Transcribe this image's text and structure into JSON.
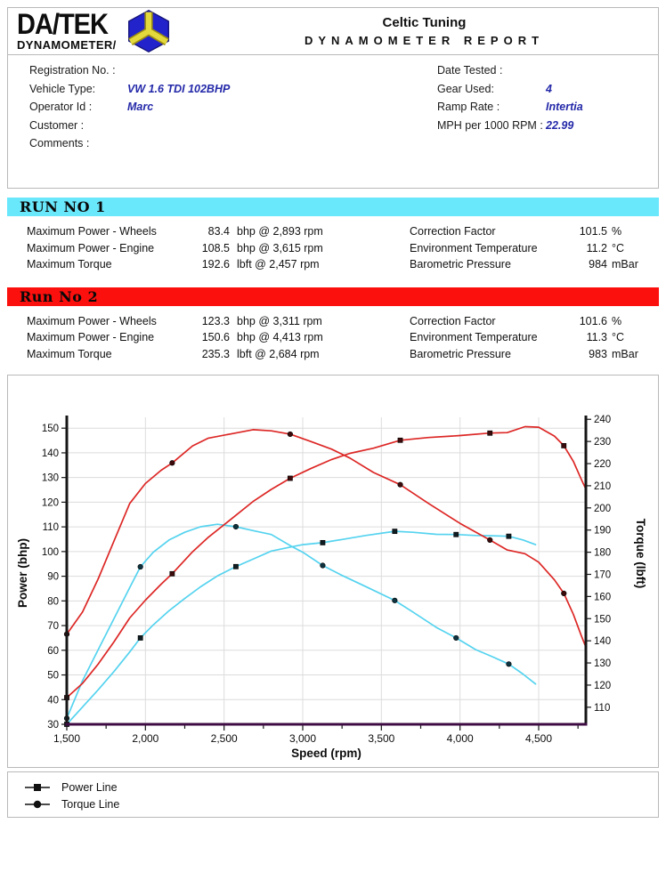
{
  "header": {
    "brand_line1": "DA/TEK",
    "brand_line2": "DYNAMOMETER/",
    "title": "Celtic Tuning",
    "subtitle": "DYNAMOMETER REPORT"
  },
  "info": {
    "left": [
      {
        "label": "Registration No. :",
        "value": ""
      },
      {
        "label": "Vehicle Type:",
        "value": "VW 1.6 TDI 102BHP"
      },
      {
        "label": "Operator Id :",
        "value": "Marc"
      },
      {
        "label": "Customer :",
        "value": ""
      },
      {
        "label": "Comments :",
        "value": ""
      }
    ],
    "right": [
      {
        "label": "Date Tested :",
        "value": ""
      },
      {
        "label": "Gear Used:",
        "value": "4"
      },
      {
        "label": "Ramp Rate :",
        "value": "Intertia"
      },
      {
        "label": "MPH per 1000 RPM :",
        "value": "22.99"
      }
    ]
  },
  "runs": [
    {
      "title": "RUN NO 1",
      "bar_color": "#69e7fb",
      "rows_left": [
        {
          "label": "Maximum Power - Wheels",
          "value": "83.4",
          "unit": "bhp @ 2,893 rpm"
        },
        {
          "label": "Maximum Power - Engine",
          "value": "108.5",
          "unit": "bhp @ 3,615 rpm"
        },
        {
          "label": "Maximum Torque",
          "value": "192.6",
          "unit": "lbft @ 2,457 rpm"
        }
      ],
      "rows_right": [
        {
          "label": "Correction Factor",
          "value": "101.5",
          "unit": "%"
        },
        {
          "label": "Environment Temperature",
          "value": "11.2",
          "unit": "°C"
        },
        {
          "label": "Barometric Pressure",
          "value": "984",
          "unit": "mBar"
        }
      ]
    },
    {
      "title": "Run No 2",
      "bar_color": "#fb100d",
      "rows_left": [
        {
          "label": "Maximum Power - Wheels",
          "value": "123.3",
          "unit": "bhp @ 3,311 rpm"
        },
        {
          "label": "Maximum Power - Engine",
          "value": "150.6",
          "unit": "bhp @ 4,413 rpm"
        },
        {
          "label": "Maximum Torque",
          "value": "235.3",
          "unit": "lbft @ 2,684 rpm"
        }
      ],
      "rows_right": [
        {
          "label": "Correction Factor",
          "value": "101.6",
          "unit": "%"
        },
        {
          "label": "Environment Temperature",
          "value": "11.3",
          "unit": "°C"
        },
        {
          "label": "Barometric Pressure",
          "value": "983",
          "unit": "mBar"
        }
      ]
    }
  ],
  "chart_data": {
    "type": "line",
    "xlabel": "Speed (rpm)",
    "ylabel_left": "Power (bhp)",
    "ylabel_right": "Torque (lbft)",
    "x_range": [
      1500,
      4800
    ],
    "x_ticks": [
      1500,
      2000,
      2500,
      3000,
      3500,
      4000,
      4500
    ],
    "x_tick_labels": [
      "1,500",
      "2,000",
      "2,500",
      "3,000",
      "3,500",
      "4,000",
      "4,500"
    ],
    "x_minor_ticks": [
      1750,
      2250,
      2750,
      3250,
      3750,
      4250,
      4750
    ],
    "power_range": [
      30,
      154.4
    ],
    "power_ticks": [
      30,
      40,
      50,
      60,
      70,
      80,
      90,
      100,
      110,
      120,
      130,
      140,
      150
    ],
    "torque_range": [
      102.3,
      240.9
    ],
    "torque_ticks": [
      110,
      120,
      130,
      140,
      150,
      160,
      170,
      180,
      190,
      200,
      210,
      220,
      230,
      240
    ],
    "grid": true,
    "series": [
      {
        "name": "Run 1 Torque Line",
        "run": 1,
        "axis": "torque",
        "color": "#55d3ef",
        "marker": "circle",
        "marker_color": "#0d3340",
        "points": [
          [
            1500,
            105
          ],
          [
            1600,
            122
          ],
          [
            1700,
            136
          ],
          [
            1800,
            150
          ],
          [
            1900,
            164
          ],
          [
            1968,
            173.4
          ],
          [
            2050,
            180
          ],
          [
            2150,
            185.5
          ],
          [
            2250,
            189
          ],
          [
            2350,
            191.5
          ],
          [
            2457,
            192.6
          ],
          [
            2575,
            191.5
          ],
          [
            2700,
            189.5
          ],
          [
            2800,
            188
          ],
          [
            2930,
            182.6
          ],
          [
            3000,
            180
          ],
          [
            3127,
            174
          ],
          [
            3250,
            169.5
          ],
          [
            3400,
            164.5
          ],
          [
            3585,
            158.2
          ],
          [
            3700,
            153
          ],
          [
            3850,
            146
          ],
          [
            3975,
            141.3
          ],
          [
            4100,
            136
          ],
          [
            4200,
            133
          ],
          [
            4310,
            129.5
          ],
          [
            4400,
            125
          ],
          [
            4480,
            120.5
          ]
        ],
        "markers": [
          [
            1500,
            105
          ],
          [
            1968,
            173.4
          ],
          [
            2575,
            191.5
          ],
          [
            3127,
            174
          ],
          [
            3585,
            158.2
          ],
          [
            3975,
            141.3
          ],
          [
            4310,
            129.5
          ]
        ]
      },
      {
        "name": "Run 1 Power Line",
        "run": 1,
        "axis": "power",
        "color": "#55d3ef",
        "marker": "square",
        "marker_color": "#101d22",
        "points": [
          [
            1500,
            30
          ],
          [
            1600,
            37
          ],
          [
            1700,
            44
          ],
          [
            1800,
            51.4
          ],
          [
            1900,
            59.3
          ],
          [
            1968,
            65
          ],
          [
            2050,
            70.3
          ],
          [
            2150,
            76
          ],
          [
            2250,
            81
          ],
          [
            2350,
            85.7
          ],
          [
            2457,
            90.1
          ],
          [
            2575,
            93.9
          ],
          [
            2700,
            97.4
          ],
          [
            2800,
            100.2
          ],
          [
            2930,
            101.9
          ],
          [
            3000,
            102.8
          ],
          [
            3127,
            103.6
          ],
          [
            3250,
            104.9
          ],
          [
            3400,
            106.5
          ],
          [
            3585,
            108.2
          ],
          [
            3700,
            107.8
          ],
          [
            3850,
            107
          ],
          [
            3975,
            106.9
          ],
          [
            4100,
            106.5
          ],
          [
            4200,
            106.4
          ],
          [
            4310,
            106.2
          ],
          [
            4400,
            104.7
          ],
          [
            4480,
            102.8
          ]
        ],
        "markers": [
          [
            1500,
            30
          ],
          [
            1968,
            65
          ],
          [
            2575,
            93.9
          ],
          [
            3127,
            103.6
          ],
          [
            3585,
            108.2
          ],
          [
            3975,
            106.9
          ],
          [
            4310,
            106.2
          ]
        ]
      },
      {
        "name": "Run 2 Torque Line",
        "run": 2,
        "axis": "torque",
        "color": "#dc2725",
        "marker": "circle",
        "marker_color": "#3c0a0a",
        "points": [
          [
            1500,
            143
          ],
          [
            1600,
            153
          ],
          [
            1700,
            168
          ],
          [
            1800,
            185
          ],
          [
            1900,
            202
          ],
          [
            2000,
            211
          ],
          [
            2100,
            217
          ],
          [
            2170,
            220.3
          ],
          [
            2300,
            228
          ],
          [
            2400,
            231.5
          ],
          [
            2550,
            233.5
          ],
          [
            2684,
            235.3
          ],
          [
            2800,
            234.8
          ],
          [
            2920,
            233.3
          ],
          [
            3050,
            230
          ],
          [
            3184,
            226.5
          ],
          [
            3300,
            222.5
          ],
          [
            3450,
            216
          ],
          [
            3620,
            210.5
          ],
          [
            3800,
            202
          ],
          [
            4000,
            193
          ],
          [
            4190,
            185.5
          ],
          [
            4300,
            181
          ],
          [
            4413,
            179.3
          ],
          [
            4500,
            175.5
          ],
          [
            4600,
            167.5
          ],
          [
            4660,
            161.4
          ],
          [
            4720,
            152
          ],
          [
            4770,
            142.5
          ],
          [
            4795,
            138
          ]
        ],
        "markers": [
          [
            1500,
            143
          ],
          [
            2170,
            220.3
          ],
          [
            2920,
            233.3
          ],
          [
            3620,
            210.5
          ],
          [
            4190,
            185.5
          ],
          [
            4660,
            161.4
          ]
        ]
      },
      {
        "name": "Run 2 Power Line",
        "run": 2,
        "axis": "power",
        "color": "#dc2725",
        "marker": "square",
        "marker_color": "#3c0a0a",
        "points": [
          [
            1500,
            40.8
          ],
          [
            1600,
            46.6
          ],
          [
            1700,
            54.4
          ],
          [
            1800,
            63.4
          ],
          [
            1900,
            73.1
          ],
          [
            2000,
            80.3
          ],
          [
            2100,
            86.8
          ],
          [
            2170,
            91
          ],
          [
            2300,
            99.9
          ],
          [
            2400,
            105.8
          ],
          [
            2550,
            113.4
          ],
          [
            2684,
            120.3
          ],
          [
            2800,
            125.2
          ],
          [
            2920,
            129.7
          ],
          [
            3050,
            133.6
          ],
          [
            3184,
            137.3
          ],
          [
            3300,
            139.8
          ],
          [
            3450,
            141.9
          ],
          [
            3620,
            145.1
          ],
          [
            3800,
            146.2
          ],
          [
            4000,
            147
          ],
          [
            4190,
            148
          ],
          [
            4300,
            148.2
          ],
          [
            4413,
            150.6
          ],
          [
            4500,
            150.4
          ],
          [
            4600,
            146.8
          ],
          [
            4660,
            142.9
          ],
          [
            4720,
            136.6
          ],
          [
            4770,
            129.4
          ],
          [
            4795,
            126
          ]
        ],
        "markers": [
          [
            1500,
            40.8
          ],
          [
            2170,
            91
          ],
          [
            2920,
            129.7
          ],
          [
            3620,
            145.1
          ],
          [
            4190,
            148
          ],
          [
            4660,
            142.9
          ]
        ]
      }
    ]
  },
  "legend": [
    {
      "label": "Power Line",
      "marker": "square"
    },
    {
      "label": "Torque Line",
      "marker": "circle"
    }
  ],
  "colors": {
    "run1_accent": "#69e7fb",
    "run2_accent": "#fb100d",
    "run1_line": "#55d3ef",
    "run2_line": "#dc2725",
    "value_text": "#2328a8",
    "x_axis_line": "#3f0b43"
  }
}
